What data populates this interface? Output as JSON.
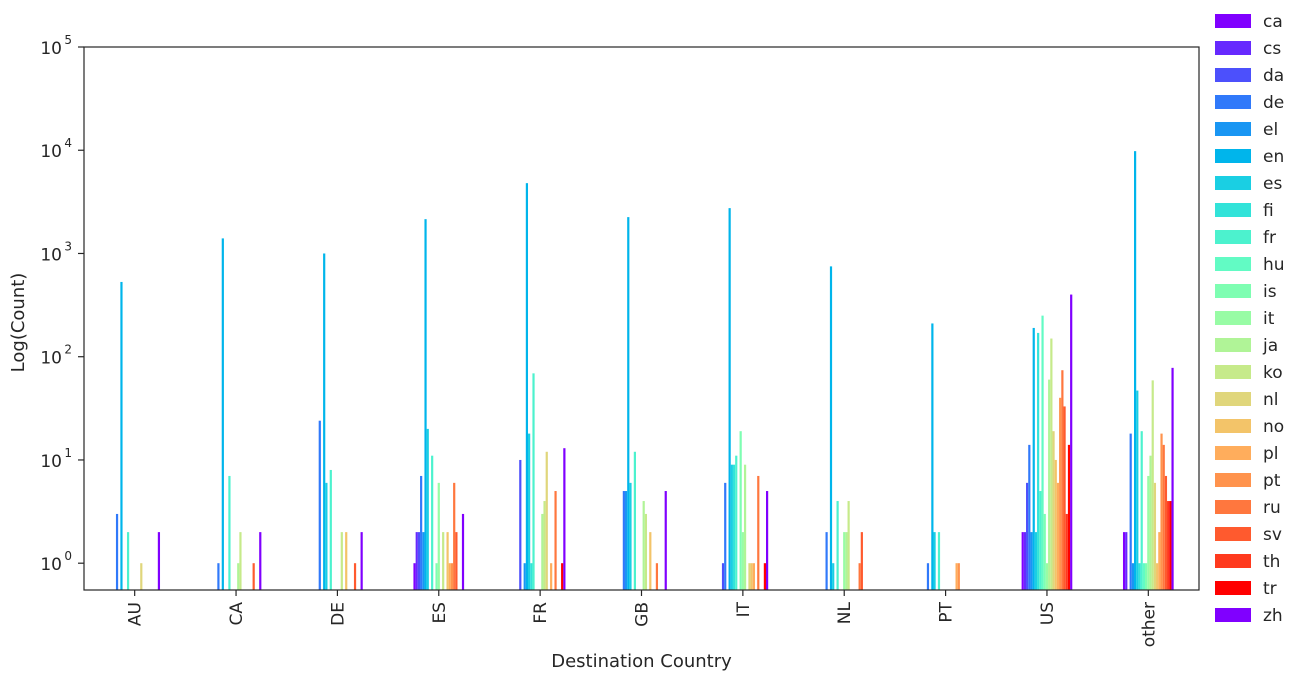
{
  "chart_data": {
    "type": "bar",
    "scale": "log",
    "title": "",
    "xlabel": "Destination Country",
    "ylabel": "Log(Count)",
    "ylim": [
      0.55,
      100000
    ],
    "y_ticks": [
      {
        "value": 1,
        "base": "10",
        "exp": "0"
      },
      {
        "value": 10,
        "base": "10",
        "exp": "1"
      },
      {
        "value": 100,
        "base": "10",
        "exp": "2"
      },
      {
        "value": 1000,
        "base": "10",
        "exp": "3"
      },
      {
        "value": 10000,
        "base": "10",
        "exp": "4"
      },
      {
        "value": 100000,
        "base": "10",
        "exp": "5"
      }
    ],
    "grid": false,
    "legend_position": "outside-right",
    "categories": [
      "AU",
      "CA",
      "DE",
      "ES",
      "FR",
      "GB",
      "IT",
      "NL",
      "PT",
      "US",
      "other"
    ],
    "series": [
      {
        "name": "ca",
        "color": "#8000ff",
        "values": [
          null,
          null,
          null,
          1,
          null,
          null,
          null,
          null,
          null,
          2,
          2
        ]
      },
      {
        "name": "cs",
        "color": "#6629fe",
        "values": [
          null,
          null,
          null,
          2,
          null,
          null,
          null,
          null,
          null,
          2,
          2
        ]
      },
      {
        "name": "da",
        "color": "#4c50fc",
        "values": [
          null,
          null,
          null,
          2,
          10,
          null,
          1,
          null,
          null,
          6,
          null
        ]
      },
      {
        "name": "de",
        "color": "#3079fa",
        "values": [
          3,
          1,
          24,
          7,
          null,
          5,
          6,
          2,
          1,
          14,
          18
        ]
      },
      {
        "name": "el",
        "color": "#1996f3",
        "values": [
          null,
          null,
          null,
          2,
          1,
          5,
          null,
          null,
          null,
          2,
          1
        ]
      },
      {
        "name": "en",
        "color": "#00b5eb",
        "values": [
          530,
          1400,
          1000,
          2150,
          4800,
          2250,
          2750,
          750,
          210,
          190,
          9800
        ]
      },
      {
        "name": "es",
        "color": "#1acfe3",
        "values": [
          null,
          null,
          6,
          20,
          18,
          6,
          9,
          1,
          2,
          2,
          47
        ]
      },
      {
        "name": "fi",
        "color": "#32e3d9",
        "values": [
          null,
          null,
          null,
          null,
          1,
          null,
          9,
          null,
          null,
          170,
          1
        ]
      },
      {
        "name": "fr",
        "color": "#4cf2ce",
        "values": [
          2,
          7,
          8,
          11,
          69,
          12,
          11,
          4,
          2,
          5,
          19
        ]
      },
      {
        "name": "hu",
        "color": "#62fbc4",
        "values": [
          null,
          null,
          null,
          null,
          null,
          null,
          null,
          null,
          null,
          250,
          1
        ]
      },
      {
        "name": "is",
        "color": "#7efeb2",
        "values": [
          null,
          null,
          null,
          1,
          null,
          null,
          19,
          null,
          null,
          3,
          1
        ]
      },
      {
        "name": "it",
        "color": "#98fca5",
        "values": [
          null,
          null,
          null,
          6,
          null,
          null,
          2,
          2,
          null,
          1,
          7
        ]
      },
      {
        "name": "ja",
        "color": "#b0f497",
        "values": [
          null,
          1,
          null,
          null,
          3,
          4,
          9,
          2,
          null,
          60,
          11
        ]
      },
      {
        "name": "ko",
        "color": "#c6ea8a",
        "values": [
          null,
          2,
          2,
          2,
          4,
          3,
          null,
          4,
          null,
          150,
          59
        ]
      },
      {
        "name": "nl",
        "color": "#e0d67b",
        "values": [
          1,
          null,
          null,
          null,
          12,
          null,
          1,
          null,
          null,
          19,
          6
        ]
      },
      {
        "name": "no",
        "color": "#f3c469",
        "values": [
          null,
          null,
          2,
          2,
          null,
          2,
          1,
          null,
          null,
          10,
          1
        ]
      },
      {
        "name": "pl",
        "color": "#ffad5c",
        "values": [
          null,
          null,
          null,
          1,
          1,
          null,
          1,
          null,
          1,
          6,
          2
        ]
      },
      {
        "name": "pt",
        "color": "#ff934d",
        "values": [
          null,
          null,
          null,
          1,
          null,
          null,
          null,
          null,
          1,
          40,
          18
        ]
      },
      {
        "name": "ru",
        "color": "#ff773e",
        "values": [
          null,
          null,
          null,
          6,
          5,
          1,
          7,
          1,
          null,
          74,
          14
        ]
      },
      {
        "name": "sv",
        "color": "#ff5a2e",
        "values": [
          null,
          1,
          1,
          2,
          null,
          null,
          null,
          2,
          null,
          33,
          7
        ]
      },
      {
        "name": "th",
        "color": "#ff3a1e",
        "values": [
          null,
          null,
          null,
          null,
          null,
          null,
          null,
          null,
          null,
          3,
          4
        ]
      },
      {
        "name": "tr",
        "color": "#ff0000",
        "values": [
          null,
          null,
          null,
          null,
          1,
          null,
          1,
          null,
          null,
          14,
          4
        ]
      },
      {
        "name": "zh",
        "color": "#8000ff",
        "values": [
          2,
          2,
          2,
          3,
          13,
          5,
          5,
          null,
          null,
          400,
          78
        ]
      }
    ]
  }
}
